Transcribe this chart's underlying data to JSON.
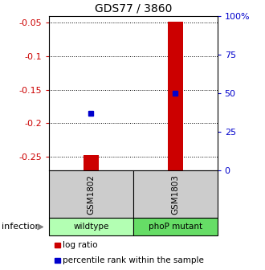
{
  "title": "GDS77 / 3860",
  "samples": [
    "GSM1802",
    "GSM1803"
  ],
  "sample_labels": [
    "wildtype",
    "phoP mutant"
  ],
  "sample_colors_light": [
    "#b3ffb3",
    "#66dd66"
  ],
  "log_ratios": [
    -0.247,
    -0.048
  ],
  "percentile_ranks_pct": [
    37,
    50
  ],
  "ylim_left": [
    -0.27,
    -0.04
  ],
  "yticks_left": [
    -0.25,
    -0.2,
    -0.15,
    -0.1,
    -0.05
  ],
  "yticks_right": [
    0,
    25,
    50,
    75,
    100
  ],
  "left_color": "#cc0000",
  "right_color": "#0000cc",
  "bar_color": "#cc0000",
  "dot_color": "#0000cc",
  "gray_color": "#cccccc",
  "infection_label": "infection",
  "legend_log_ratio": "log ratio",
  "legend_percentile": "percentile rank within the sample",
  "figsize": [
    3.3,
    3.36
  ],
  "dpi": 100
}
